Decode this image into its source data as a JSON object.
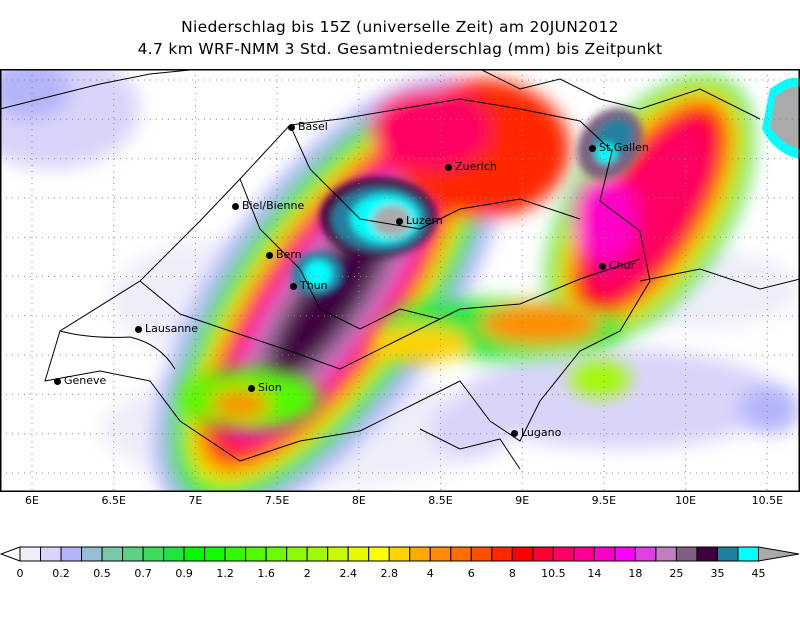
{
  "title": {
    "line1": "Niederschlag bis 15Z (universelle Zeit) am 20JUN2012",
    "line2": "4.7 km WRF-NMM 3 Std. Gesamtniederschlag (mm) bis Zeitpunkt"
  },
  "lon_labels": [
    "6E",
    "6.5E",
    "7E",
    "7.5E",
    "8E",
    "8.5E",
    "9E",
    "9.5E",
    "10E",
    "10.5E"
  ],
  "cities": [
    "Basel",
    "Zuerich",
    "St.Gallen",
    "Biel/Bienne",
    "Luzern",
    "Bern",
    "Thun",
    "Chur",
    "Lausanne",
    "Geneve",
    "Sion",
    "Lugano"
  ],
  "colorbar": {
    "labels": [
      "0",
      "0.2",
      "0.5",
      "0.7",
      "0.9",
      "1.2",
      "1.6",
      "2",
      "2.4",
      "2.8",
      "4",
      "6",
      "8",
      "10.5",
      "14",
      "18",
      "25",
      "35",
      "45"
    ],
    "colors": [
      "#eeeefa",
      "#d8d4fa",
      "#b4b4fa",
      "#96bed2",
      "#78c8aa",
      "#5ad282",
      "#3cdc5a",
      "#1ee63c",
      "#00fa00",
      "#14fa00",
      "#32fa00",
      "#50fa00",
      "#6efa00",
      "#8cfa00",
      "#a0fa00",
      "#c8fa00",
      "#e6fa00",
      "#ffff00",
      "#ffd200",
      "#ffaa00",
      "#ff8c00",
      "#ff6e00",
      "#ff5000",
      "#ff2800",
      "#ff0000",
      "#ff0032",
      "#ff0064",
      "#ff0096",
      "#ff00c8",
      "#ff00ff",
      "#e040e0",
      "#c080c0",
      "#806080",
      "#400040",
      "#2080a0",
      "#00ffff"
    ],
    "over_color": "#aaaaaa",
    "under_color": "#ffffff"
  }
}
